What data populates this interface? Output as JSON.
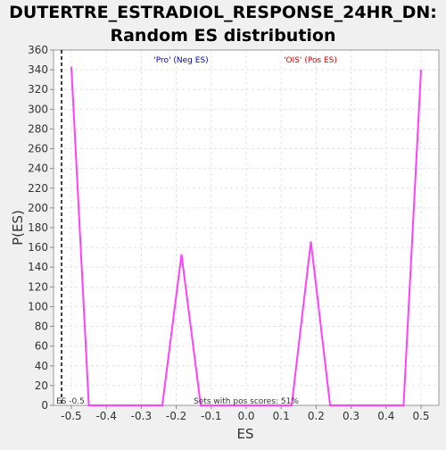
{
  "chart_data": {
    "type": "line",
    "title": [
      "DUTERTRE_ESTRADIOL_RESPONSE_24HR_DN:",
      "Random ES distribution"
    ],
    "x_label": "ES",
    "y_label": "P(ES)",
    "x": [
      -0.5,
      -0.45,
      -0.24,
      -0.185,
      -0.13,
      0.13,
      0.185,
      0.24,
      0.45,
      0.5
    ],
    "series": [
      {
        "color": "#ff40ff",
        "values": [
          343,
          0,
          0,
          153,
          0,
          0,
          166,
          0,
          0,
          340
        ]
      }
    ],
    "xlim": [
      -0.551,
      0.551
    ],
    "ylim": [
      0,
      360
    ],
    "xticks": [
      -0.5,
      -0.4,
      -0.3,
      -0.2,
      -0.1,
      {
        "value": 0,
        "label": "0.0"
      },
      0.1,
      0.2,
      0.3,
      0.4,
      0.5
    ],
    "yticks": [
      0,
      20,
      40,
      60,
      80,
      100,
      120,
      140,
      160,
      180,
      200,
      220,
      240,
      260,
      280,
      300,
      320,
      340,
      360
    ],
    "grid": true,
    "annotations": [
      {
        "text": "'Pro' (Neg ES)",
        "color": "#0000cc"
      },
      {
        "text": "'OIS' (Pos ES)",
        "color": "#dd0000"
      },
      {
        "text": "ES -0.5",
        "x": -0.528
      },
      {
        "text": "Sets with pos scores: 51%"
      }
    ]
  }
}
